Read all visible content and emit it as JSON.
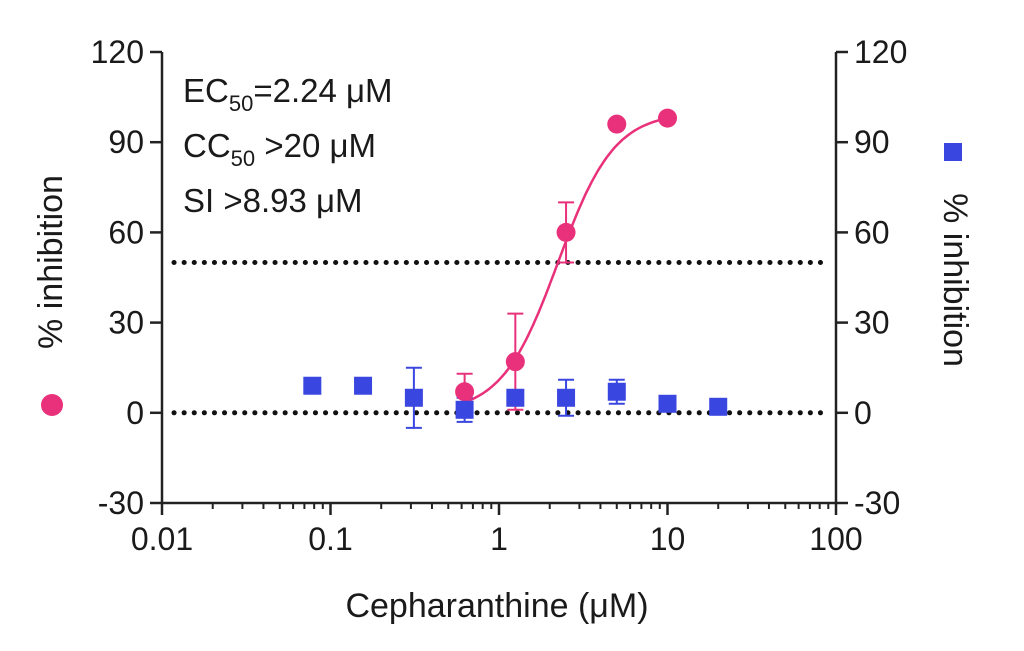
{
  "chart_data": {
    "type": "scatter",
    "x_scale": "log",
    "xlabel": "Cepharanthine (μM)",
    "ylabel_left": "% inhibition",
    "ylabel_right": "% inhibition",
    "xlim": [
      0.01,
      100
    ],
    "ylim": [
      -30,
      120
    ],
    "x_ticks": [
      0.01,
      0.1,
      1,
      10,
      100
    ],
    "x_tick_labels": [
      "0.01",
      "0.1",
      "1",
      "10",
      "100"
    ],
    "y_ticks": [
      -30,
      0,
      30,
      60,
      90,
      120
    ],
    "y_tick_labels": [
      "-30",
      "0",
      "30",
      "60",
      "90",
      "120"
    ],
    "reference_lines": [
      {
        "y": 50,
        "style": "dotted"
      },
      {
        "y": 0,
        "style": "dotted"
      }
    ],
    "annotations": [
      {
        "prefix": "EC",
        "subscript": "50",
        "suffix": "=2.24 μM"
      },
      {
        "prefix": "CC",
        "subscript": "50",
        "suffix": " >20 μM"
      },
      {
        "prefix": "SI  >8.93 μM",
        "subscript": "",
        "suffix": ""
      }
    ],
    "series": [
      {
        "marker": "circle",
        "color": "#e8317a",
        "axis": "left",
        "x": [
          0.625,
          1.25,
          2.5,
          5,
          10
        ],
        "y": [
          7,
          17,
          60,
          96,
          98
        ],
        "error": [
          6,
          16,
          10,
          0,
          0
        ],
        "fit": {
          "model": "sigmoidal",
          "ec50": 2.24,
          "bottom": 0,
          "top": 100,
          "hill": 2.6,
          "x_range": [
            0.625,
            10
          ]
        }
      },
      {
        "marker": "square",
        "color": "#3a46e0",
        "axis": "right",
        "x": [
          0.078,
          0.156,
          0.3125,
          0.625,
          1.25,
          2.5,
          5,
          10,
          20
        ],
        "y": [
          9,
          9,
          5,
          1,
          5,
          5,
          7,
          3,
          2
        ],
        "error": [
          0,
          0,
          10,
          4,
          0,
          6,
          4,
          0,
          0
        ]
      }
    ]
  }
}
